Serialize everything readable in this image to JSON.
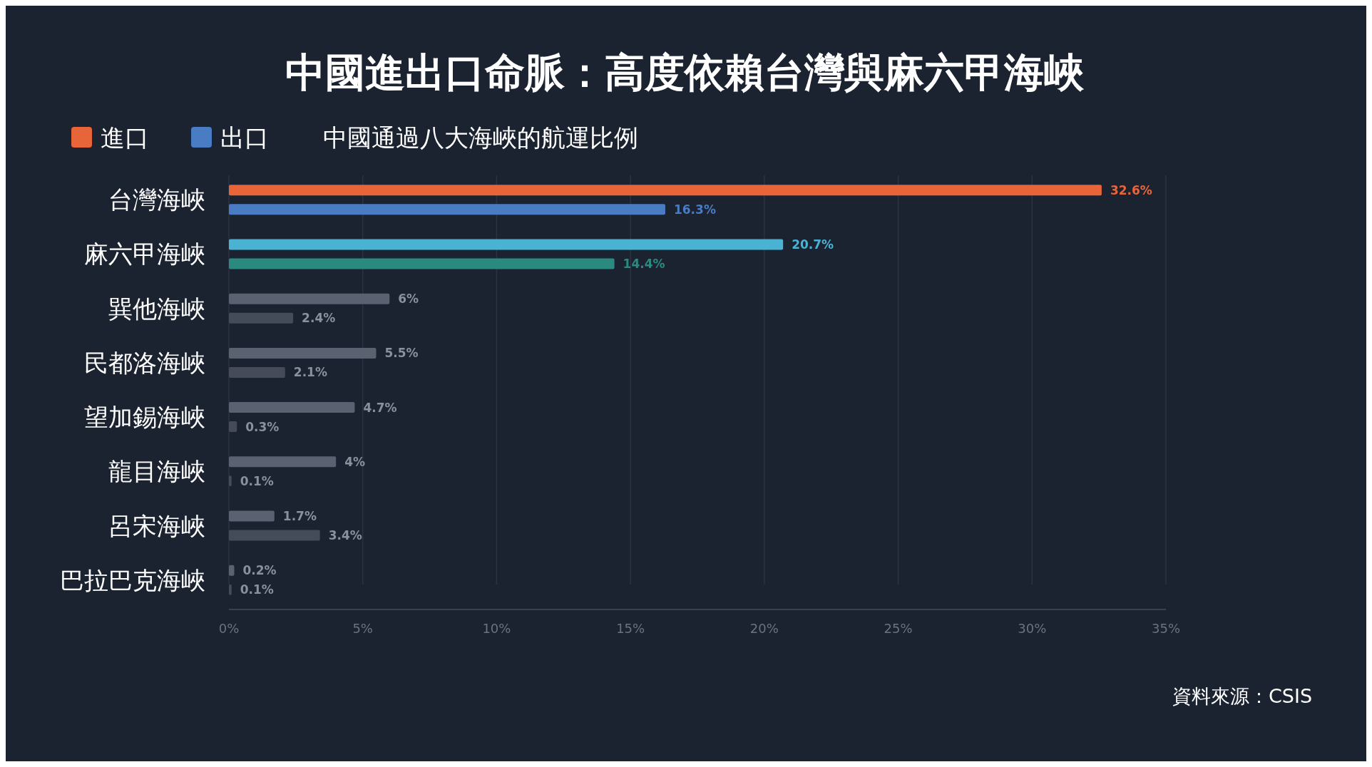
{
  "chart_data": {
    "type": "bar",
    "orientation": "horizontal",
    "title": "中國進出口命脈：高度依賴台灣與麻六甲海峽",
    "subtitle": "中國通過八大海峽的航運比例",
    "categories": [
      "台灣海峽",
      "麻六甲海峽",
      "巽他海峽",
      "民都洛海峽",
      "望加錫海峽",
      "龍目海峽",
      "呂宋海峽",
      "巴拉巴克海峽"
    ],
    "series": [
      {
        "name": "進口",
        "color": "#e8653a",
        "colors": [
          "#e8653a",
          "#4ab3d4",
          "#5a6170",
          "#5a6170",
          "#5a6170",
          "#5a6170",
          "#5a6170",
          "#5a6170"
        ],
        "values": [
          32.6,
          20.7,
          6,
          5.5,
          4.7,
          4,
          1.7,
          0.2
        ],
        "value_labels": [
          "32.6%",
          "20.7%",
          "6%",
          "5.5%",
          "4.7%",
          "4%",
          "1.7%",
          "0.2%"
        ]
      },
      {
        "name": "出口",
        "color": "#4a7cc4",
        "colors": [
          "#4a7cc4",
          "#2a8a80",
          "#454b58",
          "#454b58",
          "#454b58",
          "#454b58",
          "#454b58",
          "#454b58"
        ],
        "values": [
          16.3,
          14.4,
          2.4,
          2.1,
          0.3,
          0.1,
          3.4,
          0.1
        ],
        "value_labels": [
          "16.3%",
          "14.4%",
          "2.4%",
          "2.1%",
          "0.3%",
          "0.1%",
          "3.4%",
          "0.1%"
        ]
      }
    ],
    "xlim": [
      0,
      35
    ],
    "xticks": [
      {
        "value": 0,
        "label": "0%"
      },
      {
        "value": 5,
        "label": "5%"
      },
      {
        "value": 10,
        "label": "10%"
      },
      {
        "value": 15,
        "label": "15%"
      },
      {
        "value": 20,
        "label": "20%"
      },
      {
        "value": 25,
        "label": "25%"
      },
      {
        "value": 30,
        "label": "30%"
      },
      {
        "value": 35,
        "label": "35%"
      }
    ],
    "grid": "x",
    "legend": "top left",
    "annotations": [
      "資料來源：CSIS"
    ]
  }
}
